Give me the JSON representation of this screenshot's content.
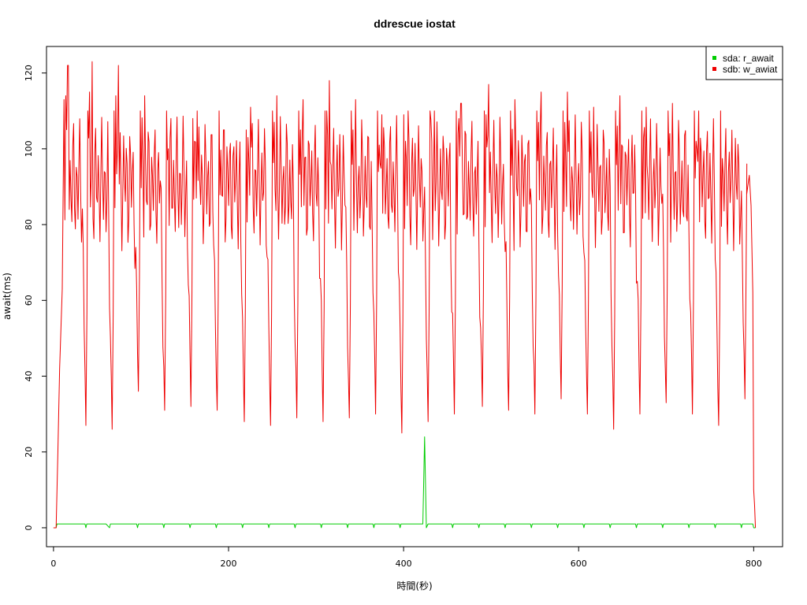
{
  "chart_data": {
    "type": "line",
    "title": "ddrescue iostat",
    "xlabel": "時間(秒)",
    "ylabel": "await(ms)",
    "xlim": [
      -8,
      833
    ],
    "ylim": [
      -5,
      127
    ],
    "x_ticks": [
      0,
      200,
      400,
      600,
      800
    ],
    "x_tick_labels": [
      "0",
      "200",
      "400",
      "600",
      "800"
    ],
    "y_ticks": [
      0,
      20,
      40,
      60,
      80,
      100,
      120
    ],
    "y_tick_labels": [
      "0",
      "20",
      "40",
      "60",
      "80",
      "100",
      "120"
    ],
    "legend_position": "top-right",
    "grid": false,
    "series": [
      {
        "name": "sda: r_await",
        "color": "#00cc00",
        "description_points": [
          [
            0,
            0
          ],
          [
            3,
            0
          ],
          [
            4,
            1
          ],
          [
            30,
            1
          ],
          [
            36,
            1
          ],
          [
            37,
            0
          ],
          [
            38,
            1
          ],
          [
            60,
            1
          ],
          [
            64,
            0
          ],
          [
            65,
            1
          ],
          [
            95,
            1
          ],
          [
            96,
            0
          ],
          [
            97,
            1
          ],
          [
            125,
            1
          ],
          [
            126,
            0
          ],
          [
            127,
            1
          ],
          [
            155,
            1
          ],
          [
            156,
            0
          ],
          [
            157,
            1
          ],
          [
            185,
            1
          ],
          [
            186,
            0
          ],
          [
            187,
            1
          ],
          [
            215,
            1
          ],
          [
            216,
            0
          ],
          [
            217,
            1
          ],
          [
            245,
            1
          ],
          [
            246,
            0
          ],
          [
            247,
            1
          ],
          [
            275,
            1
          ],
          [
            276,
            0
          ],
          [
            277,
            1
          ],
          [
            305,
            1
          ],
          [
            306,
            0
          ],
          [
            307,
            1
          ],
          [
            335,
            1
          ],
          [
            336,
            0
          ],
          [
            337,
            1
          ],
          [
            365,
            1
          ],
          [
            366,
            0
          ],
          [
            367,
            1
          ],
          [
            395,
            1
          ],
          [
            396,
            0
          ],
          [
            397,
            1
          ],
          [
            420,
            1
          ],
          [
            422,
            1
          ],
          [
            424,
            24
          ],
          [
            426,
            0
          ],
          [
            428,
            1
          ],
          [
            455,
            1
          ],
          [
            456,
            0
          ],
          [
            457,
            1
          ],
          [
            485,
            1
          ],
          [
            486,
            0
          ],
          [
            487,
            1
          ],
          [
            515,
            1
          ],
          [
            516,
            0
          ],
          [
            517,
            1
          ],
          [
            545,
            1
          ],
          [
            546,
            0
          ],
          [
            547,
            1
          ],
          [
            575,
            1
          ],
          [
            576,
            0
          ],
          [
            577,
            1
          ],
          [
            605,
            1
          ],
          [
            606,
            0
          ],
          [
            607,
            1
          ],
          [
            635,
            1
          ],
          [
            636,
            0
          ],
          [
            637,
            1
          ],
          [
            665,
            1
          ],
          [
            666,
            0
          ],
          [
            667,
            1
          ],
          [
            695,
            1
          ],
          [
            696,
            0
          ],
          [
            697,
            1
          ],
          [
            725,
            1
          ],
          [
            726,
            0
          ],
          [
            727,
            1
          ],
          [
            755,
            1
          ],
          [
            756,
            0
          ],
          [
            757,
            1
          ],
          [
            785,
            1
          ],
          [
            786,
            0
          ],
          [
            787,
            1
          ],
          [
            799,
            1
          ],
          [
            800,
            0
          ],
          [
            802,
            0
          ]
        ]
      },
      {
        "name": "sdb: w_awiat",
        "color": "#ee0000",
        "ramp_points": [
          [
            0,
            0
          ],
          [
            3,
            0
          ],
          [
            5,
            20
          ],
          [
            7,
            42
          ],
          [
            10,
            63
          ],
          [
            12,
            113
          ]
        ],
        "valley_x": [
          37,
          67,
          97,
          127,
          157,
          187,
          218,
          248,
          278,
          308,
          338,
          368,
          398,
          428,
          458,
          490,
          520,
          550,
          580,
          610,
          640,
          670,
          700,
          730,
          760,
          790
        ],
        "valley_y": [
          27,
          26,
          36,
          31,
          32,
          31,
          28,
          27,
          29,
          28,
          29,
          30,
          25,
          28,
          30,
          32,
          31,
          30,
          34,
          30,
          26,
          30,
          33,
          30,
          27,
          34
        ],
        "peak_y": [
          122,
          123,
          122,
          114,
          108,
          110,
          105,
          111,
          114,
          113,
          118,
          113,
          109,
          110,
          110,
          112,
          117,
          113,
          115,
          115,
          111,
          114,
          111,
          112,
          110,
          96
        ],
        "tail_points": [
          [
            792,
            88
          ],
          [
            795,
            93
          ],
          [
            797,
            85
          ],
          [
            799,
            62
          ],
          [
            800,
            10
          ],
          [
            801,
            6
          ],
          [
            802,
            0
          ]
        ]
      }
    ]
  }
}
